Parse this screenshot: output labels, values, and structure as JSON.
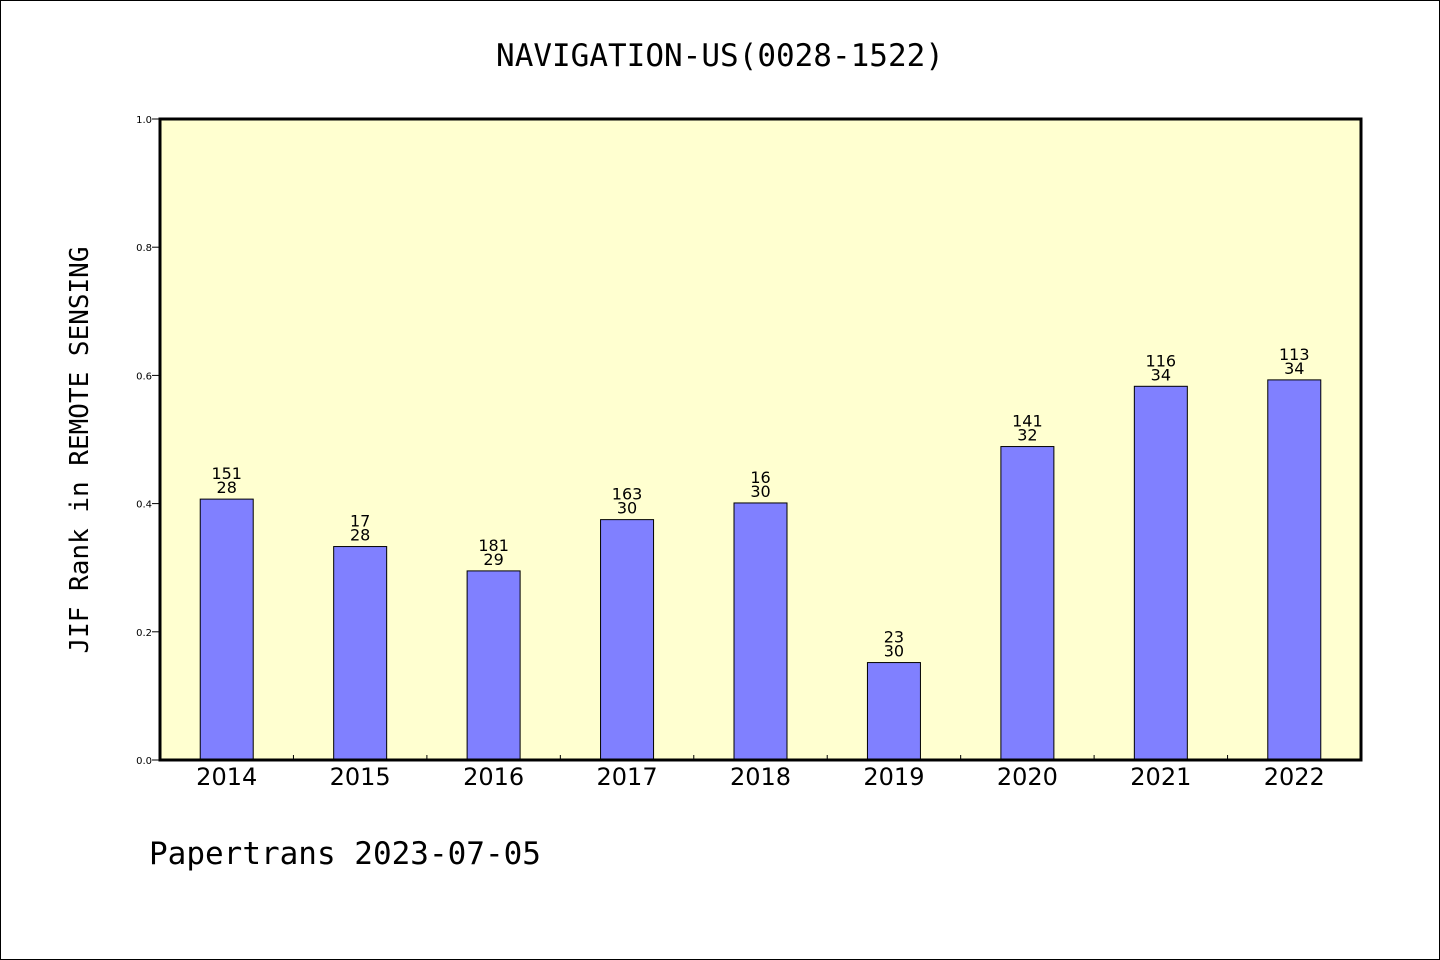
{
  "colors": {
    "plot_background": "#ffffd0",
    "bar_fill": "#8080ff",
    "bar_stroke": "#000000"
  },
  "chart_data": {
    "type": "bar",
    "title": "NAVIGATION-US(0028-1522)",
    "xlabel": "",
    "ylabel": "JIF Rank in REMOTE SENSING",
    "ylim": [
      0,
      1.0
    ],
    "yticks": [
      "0.0",
      "0.2",
      "0.4",
      "0.6",
      "0.8",
      "1.0"
    ],
    "yticks_values": [
      0,
      0.2,
      0.4,
      0.6,
      0.8,
      1.0
    ],
    "categories": [
      "2014",
      "2015",
      "2016",
      "2017",
      "2018",
      "2019",
      "2020",
      "2021",
      "2022"
    ],
    "values": [
      0.407,
      0.333,
      0.295,
      0.375,
      0.401,
      0.152,
      0.489,
      0.583,
      0.593
    ],
    "labels_top": [
      "151",
      "17",
      "181",
      "163",
      "16",
      "23",
      "141",
      "116",
      "113"
    ],
    "labels_bottom": [
      "28",
      "28",
      "29",
      "30",
      "30",
      "30",
      "32",
      "34",
      "34"
    ],
    "grid": false,
    "legend": "none"
  },
  "footer": {
    "text": "Papertrans 2023-07-05"
  }
}
